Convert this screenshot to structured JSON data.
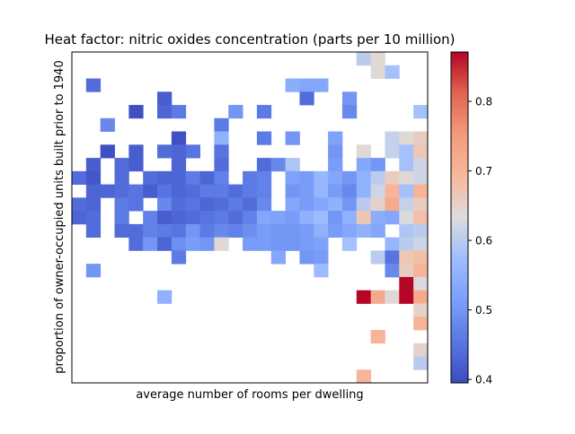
{
  "chart_data": {
    "type": "heatmap",
    "title": "Heat factor: nitric oxides concentration (parts per 10 million)",
    "xlabel": "average number of rooms per dwelling",
    "ylabel": "proportion of owner-occupied units built prior to 1940",
    "x_ticks_shown": false,
    "y_ticks_shown": false,
    "grid": false,
    "colormap": "coolwarm",
    "colorbar": {
      "vmin": 0.395,
      "vmax": 0.871,
      "ticks": [
        0.4,
        0.5,
        0.6,
        0.7,
        0.8
      ],
      "tick_labels": [
        "0.4",
        "0.5",
        "0.6",
        "0.7",
        "0.8"
      ]
    },
    "grid_size": {
      "cols": 25,
      "rows": 25
    },
    "rows_top_to_bottom": [
      [
        null,
        null,
        null,
        null,
        null,
        null,
        null,
        null,
        null,
        null,
        null,
        null,
        null,
        null,
        null,
        null,
        null,
        null,
        null,
        null,
        0.6,
        0.64,
        null,
        null,
        null
      ],
      [
        null,
        null,
        null,
        null,
        null,
        null,
        null,
        null,
        null,
        null,
        null,
        null,
        null,
        null,
        null,
        null,
        null,
        null,
        null,
        null,
        null,
        0.64,
        0.58,
        null,
        null
      ],
      [
        null,
        0.44,
        null,
        null,
        null,
        null,
        null,
        null,
        null,
        null,
        null,
        null,
        null,
        null,
        null,
        0.54,
        0.53,
        0.53,
        null,
        null,
        null,
        null,
        null,
        null,
        null
      ],
      [
        null,
        null,
        null,
        null,
        null,
        null,
        0.42,
        null,
        null,
        null,
        null,
        null,
        null,
        null,
        null,
        null,
        0.44,
        null,
        null,
        0.5,
        null,
        null,
        null,
        null,
        null
      ],
      [
        null,
        null,
        null,
        null,
        0.4,
        null,
        0.43,
        0.46,
        null,
        null,
        null,
        0.5,
        null,
        0.46,
        null,
        null,
        null,
        null,
        null,
        0.48,
        null,
        null,
        null,
        null,
        0.58
      ],
      [
        null,
        null,
        0.48,
        null,
        null,
        null,
        null,
        null,
        null,
        null,
        0.46,
        null,
        null,
        null,
        null,
        null,
        null,
        null,
        null,
        null,
        null,
        null,
        null,
        null,
        null
      ],
      [
        null,
        null,
        null,
        null,
        null,
        null,
        null,
        0.4,
        null,
        null,
        0.55,
        null,
        null,
        0.46,
        null,
        0.5,
        null,
        null,
        0.52,
        null,
        null,
        null,
        0.61,
        0.64,
        0.66
      ],
      [
        null,
        null,
        0.4,
        null,
        0.42,
        null,
        0.44,
        0.43,
        0.45,
        null,
        0.45,
        null,
        null,
        null,
        null,
        null,
        null,
        null,
        0.5,
        null,
        0.64,
        null,
        0.61,
        0.58,
        0.67
      ],
      [
        null,
        0.42,
        null,
        0.44,
        0.42,
        null,
        null,
        0.43,
        null,
        null,
        0.44,
        null,
        null,
        0.44,
        0.48,
        0.59,
        null,
        null,
        0.51,
        null,
        0.53,
        0.5,
        null,
        0.58,
        0.62
      ],
      [
        0.44,
        0.41,
        null,
        0.44,
        null,
        0.44,
        0.43,
        0.43,
        0.46,
        0.43,
        0.47,
        null,
        0.46,
        0.47,
        null,
        0.52,
        0.51,
        0.56,
        0.53,
        0.5,
        0.55,
        0.6,
        0.66,
        0.64,
        0.62
      ],
      [
        null,
        0.43,
        0.43,
        0.44,
        0.45,
        0.42,
        0.45,
        0.43,
        0.44,
        0.46,
        0.46,
        0.44,
        0.46,
        0.47,
        null,
        0.5,
        0.51,
        0.56,
        0.51,
        0.48,
        0.55,
        0.62,
        0.7,
        0.58,
        0.7
      ],
      [
        0.44,
        0.43,
        null,
        0.46,
        0.45,
        null,
        0.48,
        0.44,
        0.45,
        0.43,
        0.44,
        0.46,
        0.44,
        0.48,
        null,
        0.53,
        0.51,
        0.53,
        0.55,
        0.5,
        0.6,
        0.65,
        0.72,
        0.61,
        0.66
      ],
      [
        0.43,
        0.44,
        null,
        0.46,
        null,
        0.47,
        0.42,
        0.43,
        0.44,
        0.45,
        0.46,
        0.44,
        0.47,
        0.53,
        0.52,
        0.51,
        0.55,
        0.57,
        0.5,
        0.55,
        0.67,
        0.54,
        0.53,
        0.63,
        0.68
      ],
      [
        null,
        0.44,
        null,
        0.44,
        0.44,
        0.47,
        0.46,
        0.45,
        0.5,
        0.46,
        0.48,
        0.47,
        0.49,
        0.51,
        0.5,
        0.5,
        0.51,
        0.55,
        0.51,
        0.53,
        0.55,
        0.53,
        null,
        0.59,
        0.6
      ],
      [
        null,
        null,
        null,
        null,
        0.44,
        0.5,
        0.43,
        0.49,
        0.51,
        0.5,
        0.64,
        null,
        0.51,
        0.51,
        0.5,
        0.5,
        0.51,
        0.52,
        null,
        0.58,
        null,
        null,
        0.56,
        0.6,
        0.62
      ],
      [
        null,
        null,
        null,
        null,
        null,
        null,
        null,
        0.46,
        null,
        null,
        null,
        null,
        null,
        null,
        0.53,
        null,
        0.5,
        0.51,
        null,
        null,
        null,
        0.6,
        0.45,
        0.67,
        0.68
      ],
      [
        null,
        0.5,
        null,
        null,
        null,
        null,
        null,
        null,
        null,
        null,
        null,
        null,
        null,
        null,
        null,
        null,
        null,
        0.57,
        null,
        null,
        null,
        null,
        0.48,
        0.66,
        0.7
      ],
      [
        null,
        null,
        null,
        null,
        null,
        null,
        null,
        null,
        null,
        null,
        null,
        null,
        null,
        null,
        null,
        null,
        null,
        null,
        null,
        null,
        null,
        null,
        null,
        0.87,
        0.63
      ],
      [
        null,
        null,
        null,
        null,
        null,
        null,
        0.55,
        null,
        null,
        null,
        null,
        null,
        null,
        null,
        null,
        null,
        null,
        null,
        null,
        null,
        0.87,
        0.72,
        0.64,
        0.87,
        0.72
      ],
      [
        null,
        null,
        null,
        null,
        null,
        null,
        null,
        null,
        null,
        null,
        null,
        null,
        null,
        null,
        null,
        null,
        null,
        null,
        null,
        null,
        null,
        null,
        null,
        null,
        0.65
      ],
      [
        null,
        null,
        null,
        null,
        null,
        null,
        null,
        null,
        null,
        null,
        null,
        null,
        null,
        null,
        null,
        null,
        null,
        null,
        null,
        null,
        null,
        null,
        null,
        null,
        0.7
      ],
      [
        null,
        null,
        null,
        null,
        null,
        null,
        null,
        null,
        null,
        null,
        null,
        null,
        null,
        null,
        null,
        null,
        null,
        null,
        null,
        null,
        null,
        0.7,
        null,
        null,
        null
      ],
      [
        null,
        null,
        null,
        null,
        null,
        null,
        null,
        null,
        null,
        null,
        null,
        null,
        null,
        null,
        null,
        null,
        null,
        null,
        null,
        null,
        null,
        null,
        null,
        null,
        0.65
      ],
      [
        null,
        null,
        null,
        null,
        null,
        null,
        null,
        null,
        null,
        null,
        null,
        null,
        null,
        null,
        null,
        null,
        null,
        null,
        null,
        null,
        null,
        null,
        null,
        null,
        0.6
      ],
      [
        null,
        null,
        null,
        null,
        null,
        null,
        null,
        null,
        null,
        null,
        null,
        null,
        null,
        null,
        null,
        null,
        null,
        null,
        null,
        null,
        0.7,
        null,
        null,
        null,
        null
      ]
    ]
  }
}
